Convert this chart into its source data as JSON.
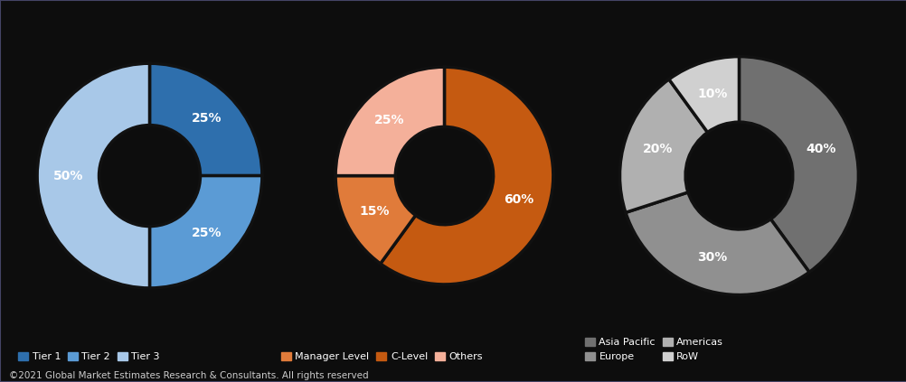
{
  "chart1": {
    "values": [
      25,
      25,
      50
    ],
    "colors": [
      "#2e6fad",
      "#5b9bd5",
      "#a8c8e8"
    ],
    "labels": [
      "25%",
      "25%",
      "50%"
    ],
    "legend": [
      "Tier 1",
      "Tier 2",
      "Tier 3"
    ],
    "startangle": 90
  },
  "chart2": {
    "values": [
      60,
      15,
      25
    ],
    "colors": [
      "#c55a11",
      "#e07b3a",
      "#f4b09a"
    ],
    "labels": [
      "60%",
      "15%",
      "25%"
    ],
    "legend": [
      "C-Level",
      "Manager Level",
      "Others"
    ],
    "startangle": 90
  },
  "chart3": {
    "values": [
      40,
      30,
      20,
      10
    ],
    "colors": [
      "#707070",
      "#909090",
      "#b0b0b0",
      "#d0d0d0"
    ],
    "labels": [
      "40%",
      "30%",
      "20%",
      "10%"
    ],
    "legend": [
      "Asia Pacific",
      "Europe",
      "Americas",
      "RoW"
    ],
    "startangle": 90
  },
  "background_color": "#1a1a2e",
  "donut_bg": "#0a0a0a",
  "text_color": "white",
  "footer": "©2021 Global Market Estimates Research & Consultants. All rights reserved",
  "footer_color": "#cccccc",
  "wedge_linewidth": 2.5,
  "wedge_edgecolor": "#111111",
  "donut_width": 0.55,
  "label_r": 0.72
}
